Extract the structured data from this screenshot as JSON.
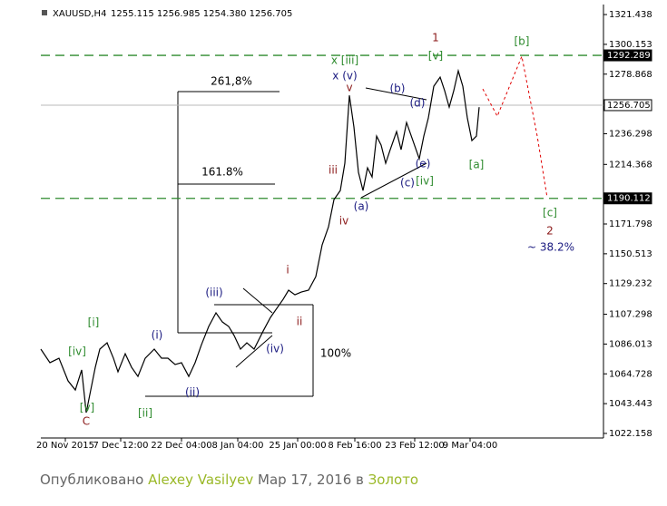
{
  "header": {
    "symbol": "XAUUSD,H4",
    "ohlc": "1255.115 1256.985 1254.380 1256.705"
  },
  "chart_data": {
    "type": "line",
    "xlim": [
      0,
      310
    ],
    "ylim": [
      1018.9,
      1328.6
    ],
    "xticks": [
      {
        "value": 13.5,
        "label": "20 Nov 2015"
      },
      {
        "value": 44,
        "label": "7 Dec 12:00"
      },
      {
        "value": 77.5,
        "label": "22 Dec 04:00"
      },
      {
        "value": 108.5,
        "label": "8 Jan 04:00"
      },
      {
        "value": 141.5,
        "label": "25 Jan 00:00"
      },
      {
        "value": 173,
        "label": "8 Feb 16:00"
      },
      {
        "value": 206,
        "label": "23 Feb 12:00"
      },
      {
        "value": 236.5,
        "label": "9 Mar 04:00"
      }
    ],
    "yticks": [
      1321.438,
      1300.153,
      1278.868,
      1236.298,
      1214.368,
      1171.798,
      1150.513,
      1129.232,
      1107.298,
      1086.013,
      1064.728,
      1043.443,
      1022.158
    ],
    "series": [
      {
        "color": "#000000",
        "dashed": false,
        "x": [
          0,
          5,
          10,
          15,
          19,
          22.5,
          25,
          27.5,
          30,
          32.5,
          36.5,
          40,
          42.5,
          46.5,
          50,
          53.5,
          57.5,
          62.5,
          66.5,
          70,
          74,
          77.5,
          81.5,
          85,
          88.5,
          92.5,
          96.5,
          100,
          103.5,
          106.5,
          110,
          113.5,
          117.5,
          122.5,
          126.5,
          130,
          133.5,
          136.5,
          140,
          143.5,
          147.5,
          151.5,
          155,
          158.5,
          161.5,
          165,
          167.5,
          170,
          172.5,
          175,
          177.5,
          180,
          182.5,
          185,
          187.5,
          190,
          192.5,
          196,
          198.5,
          201.5,
          205,
          208.5,
          211,
          213.5,
          216.5,
          220,
          222.5,
          225,
          227.5,
          230,
          232.5,
          235,
          237.5,
          240,
          241.5
        ],
        "values": [
          1082.4,
          1072.7,
          1075.9,
          1059.7,
          1053.2,
          1067.5,
          1037.0,
          1053.2,
          1069.4,
          1082.4,
          1086.9,
          1075.9,
          1066.2,
          1079.1,
          1069.4,
          1062.9,
          1075.9,
          1082.4,
          1075.9,
          1075.9,
          1071.4,
          1072.7,
          1062.9,
          1072.7,
          1085.6,
          1098.6,
          1108.3,
          1101.8,
          1098.6,
          1092.1,
          1082.4,
          1086.9,
          1082.4,
          1095.3,
          1105.0,
          1111.5,
          1118.0,
          1124.5,
          1121.2,
          1123.2,
          1124.5,
          1134.2,
          1156.9,
          1169.8,
          1189.2,
          1195.7,
          1215.2,
          1263.7,
          1241.1,
          1208.7,
          1195.7,
          1211.9,
          1205.4,
          1234.6,
          1228.1,
          1215.2,
          1224.9,
          1237.8,
          1224.9,
          1244.3,
          1231.4,
          1218.4,
          1234.6,
          1247.5,
          1270.2,
          1276.7,
          1267.0,
          1255.3,
          1267.0,
          1281.2,
          1270.2,
          1247.5,
          1231.4,
          1234.6,
          1255.3
        ]
      },
      {
        "color": "#e00000",
        "dashed": true,
        "x": [
          243.5,
          251.5,
          265,
          273.5,
          279
        ],
        "values": [
          1268.3,
          1248.8,
          1291.6,
          1234.6,
          1190.5
        ]
      }
    ],
    "levels": [
      {
        "value": 1292.289,
        "color": "#2e8b2e",
        "dashed": true
      },
      {
        "value": 1256.705,
        "color": "#b8b8b8",
        "dashed": false
      },
      {
        "value": 1190.112,
        "color": "#2e8b2e",
        "dashed": true
      }
    ],
    "annotations": [
      {
        "text": "1",
        "x": 217.5,
        "y": 1304.6,
        "color": "#8b1a1a"
      },
      {
        "text": "x [iii]",
        "x": 167.5,
        "y": 1288.4,
        "color": "#2e8b2e"
      },
      {
        "text": "x (v)",
        "x": 167.5,
        "y": 1277.4,
        "color": "#1a1a80"
      },
      {
        "text": "v",
        "x": 170,
        "y": 1269.0,
        "color": "#8b1a1a"
      },
      {
        "text": "[v]",
        "x": 217.5,
        "y": 1291.6,
        "color": "#2e8b2e"
      },
      {
        "text": "[b]",
        "x": 265,
        "y": 1302.0,
        "color": "#2e8b2e"
      },
      {
        "text": "(b)",
        "x": 196.5,
        "y": 1268.3,
        "color": "#1a1a80"
      },
      {
        "text": "(d)",
        "x": 207.5,
        "y": 1257.9,
        "color": "#1a1a80"
      },
      {
        "text": "(e)",
        "x": 210.5,
        "y": 1214.5,
        "color": "#1a1a80"
      },
      {
        "text": "(c)",
        "x": 202,
        "y": 1200.9,
        "color": "#1a1a80"
      },
      {
        "text": "[iv]",
        "x": 211.5,
        "y": 1202.2,
        "color": "#2e8b2e"
      },
      {
        "text": "(a)",
        "x": 176.5,
        "y": 1184.1,
        "color": "#1a1a80"
      },
      {
        "text": "iii",
        "x": 161,
        "y": 1210.0,
        "color": "#8b1a1a"
      },
      {
        "text": "iv",
        "x": 167,
        "y": 1173.7,
        "color": "#8b1a1a"
      },
      {
        "text": "[a]",
        "x": 240,
        "y": 1213.9,
        "color": "#2e8b2e"
      },
      {
        "text": "[c]",
        "x": 280.5,
        "y": 1179.5,
        "color": "#2e8b2e"
      },
      {
        "text": "2",
        "x": 280.5,
        "y": 1166.6,
        "color": "#8b1a1a"
      },
      {
        "text": "~ 38.2%",
        "x": 281,
        "y": 1154.9,
        "color": "#1a1a80"
      },
      {
        "text": "i",
        "x": 136,
        "y": 1138.7,
        "color": "#8b1a1a"
      },
      {
        "text": "ii",
        "x": 142.5,
        "y": 1101.8,
        "color": "#8b1a1a"
      },
      {
        "text": "(iii)",
        "x": 95.5,
        "y": 1122.5,
        "color": "#1a1a80"
      },
      {
        "text": "(iv)",
        "x": 129,
        "y": 1082.4,
        "color": "#1a1a80"
      },
      {
        "text": "(ii)",
        "x": 83.5,
        "y": 1051.3,
        "color": "#1a1a80"
      },
      {
        "text": "(i)",
        "x": 64,
        "y": 1092.1,
        "color": "#1a1a80"
      },
      {
        "text": "[i]",
        "x": 29,
        "y": 1101.1,
        "color": "#2e8b2e"
      },
      {
        "text": "[iv]",
        "x": 20,
        "y": 1080.4,
        "color": "#2e8b2e"
      },
      {
        "text": "[ii]",
        "x": 57.5,
        "y": 1036.4,
        "color": "#2e8b2e"
      },
      {
        "text": "[v]",
        "x": 25.5,
        "y": 1040.3,
        "color": "#2e8b2e"
      },
      {
        "text": "C",
        "x": 25,
        "y": 1030.5,
        "color": "#8b1a1a"
      }
    ],
    "fib_labels": [
      "261,8%",
      "161.8%",
      "100%"
    ]
  },
  "footer": {
    "published": "Опубликовано",
    "author": "Alexey Vasilyev",
    "date": "Мар 17, 2016 в",
    "category": "Золото"
  }
}
